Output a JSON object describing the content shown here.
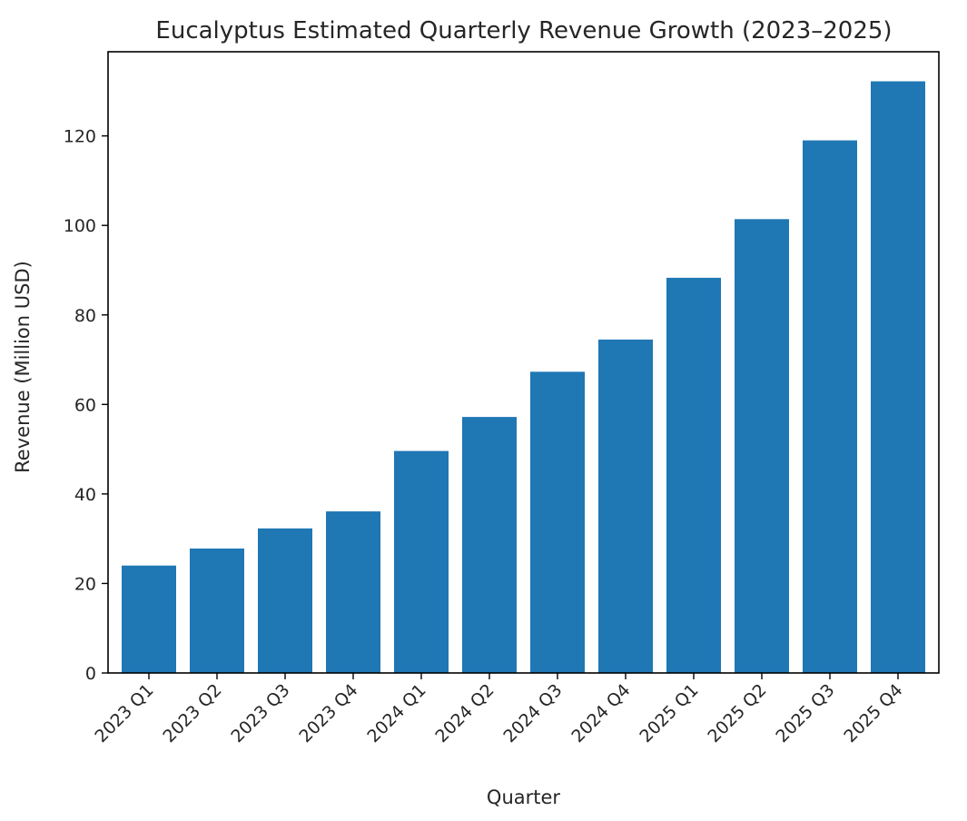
{
  "chart_data": {
    "type": "bar",
    "title": "Eucalyptus Estimated Quarterly Revenue Growth (2023–2025)",
    "xlabel": "Quarter",
    "ylabel": "Revenue (Million USD)",
    "categories": [
      "2023 Q1",
      "2023 Q2",
      "2023 Q3",
      "2023 Q4",
      "2024 Q1",
      "2024 Q2",
      "2024 Q3",
      "2024 Q4",
      "2025 Q1",
      "2025 Q2",
      "2025 Q3",
      "2025 Q4"
    ],
    "values": [
      24.0,
      27.8,
      32.3,
      36.1,
      49.6,
      57.2,
      67.3,
      74.5,
      88.3,
      101.4,
      119.0,
      132.2
    ],
    "ylim": [
      0,
      138.8
    ],
    "yticks": [
      0,
      20,
      40,
      60,
      80,
      100,
      120
    ],
    "grid": false,
    "bar_color": "#1f77b4"
  }
}
